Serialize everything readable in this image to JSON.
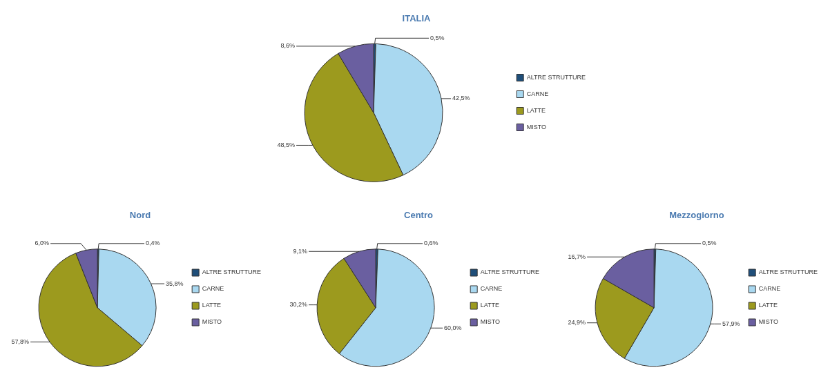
{
  "chart_data": [
    {
      "type": "pie",
      "title": "ITALIA",
      "categories": [
        "ALTRE STRUTTURE",
        "CARNE",
        "LATTE",
        "MISTO"
      ],
      "values": [
        0.5,
        42.5,
        48.5,
        8.6
      ],
      "value_labels": [
        "0,5%",
        "42,5%",
        "48,5%",
        "8,6%"
      ],
      "colors": [
        "#1f4e79",
        "#a9d8f0",
        "#9c9a1e",
        "#6a5fa0"
      ],
      "legend": "right"
    },
    {
      "type": "pie",
      "title": "Nord",
      "categories": [
        "ALTRE STRUTTURE",
        "CARNE",
        "LATTE",
        "MISTO"
      ],
      "values": [
        0.4,
        35.8,
        57.8,
        6.0
      ],
      "value_labels": [
        "0,4%",
        "35,8%",
        "57,8%",
        "6,0%"
      ],
      "colors": [
        "#1f4e79",
        "#a9d8f0",
        "#9c9a1e",
        "#6a5fa0"
      ],
      "legend": "right"
    },
    {
      "type": "pie",
      "title": "Centro",
      "categories": [
        "ALTRE STRUTTURE",
        "CARNE",
        "LATTE",
        "MISTO"
      ],
      "values": [
        0.6,
        60.0,
        30.2,
        9.1
      ],
      "value_labels": [
        "0,6%",
        "60,0%",
        "30,2%",
        "9,1%"
      ],
      "colors": [
        "#1f4e79",
        "#a9d8f0",
        "#9c9a1e",
        "#6a5fa0"
      ],
      "legend": "right"
    },
    {
      "type": "pie",
      "title": "Mezzogiorno",
      "categories": [
        "ALTRE STRUTTURE",
        "CARNE",
        "LATTE",
        "MISTO"
      ],
      "values": [
        0.5,
        57.9,
        24.9,
        16.7
      ],
      "value_labels": [
        "0,5%",
        "57,9%",
        "24,9%",
        "16,7%"
      ],
      "colors": [
        "#1f4e79",
        "#a9d8f0",
        "#9c9a1e",
        "#6a5fa0"
      ],
      "legend": "right"
    }
  ]
}
